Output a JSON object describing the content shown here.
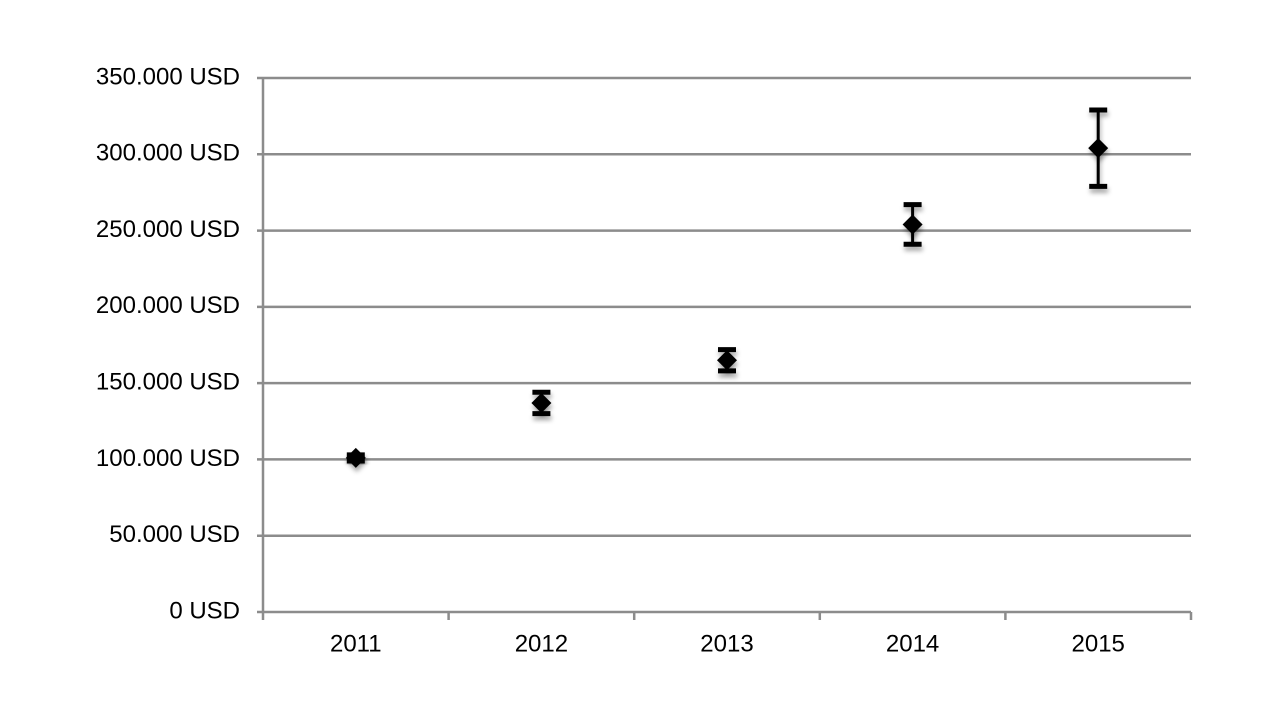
{
  "chart_data": {
    "type": "scatter",
    "categories": [
      "2011",
      "2012",
      "2013",
      "2014",
      "2015"
    ],
    "values": [
      101000,
      137000,
      165000,
      254000,
      304000
    ],
    "errors": [
      2000,
      7000,
      7000,
      13000,
      25000
    ],
    "color": "#000000",
    "ylim": [
      0,
      350000
    ],
    "yticks": [
      {
        "value": 0,
        "label": "0 USD"
      },
      {
        "value": 50000,
        "label": "50.000 USD"
      },
      {
        "value": 100000,
        "label": "100.000 USD"
      },
      {
        "value": 150000,
        "label": "150.000 USD"
      },
      {
        "value": 200000,
        "label": "200.000 USD"
      },
      {
        "value": 250000,
        "label": "250.000 USD"
      },
      {
        "value": 300000,
        "label": "300.000 USD"
      },
      {
        "value": 350000,
        "label": "350.000 USD"
      }
    ],
    "grid": true
  }
}
